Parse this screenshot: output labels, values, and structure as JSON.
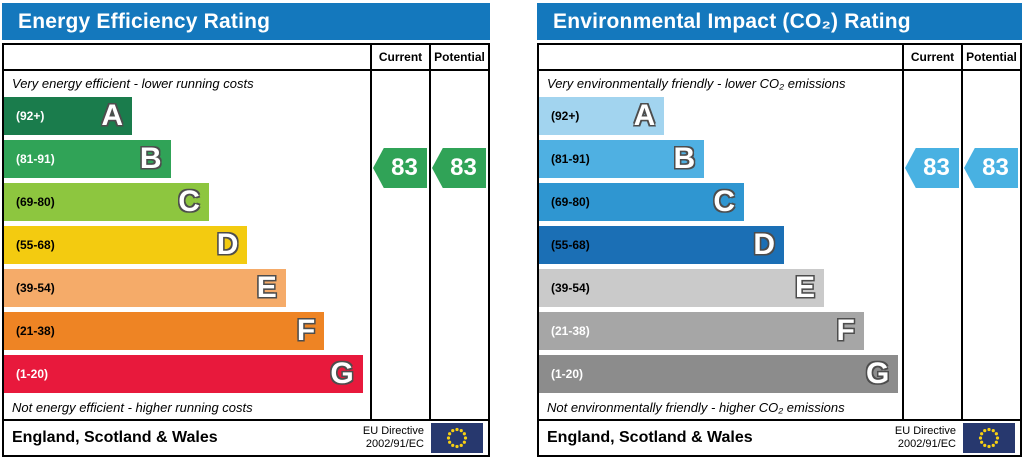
{
  "charts": [
    {
      "title": "Energy Efficiency Rating",
      "header_color": "#1478bd",
      "columns": {
        "current": "Current",
        "potential": "Potential"
      },
      "top_caption": "Very energy efficient - lower running costs",
      "bottom_caption": "Not energy efficient - higher running costs",
      "bands": [
        {
          "grade": "A",
          "range": "(92+)",
          "color": "#1a7c4c",
          "label_color": "#ffffff",
          "width_pct": 35
        },
        {
          "grade": "B",
          "range": "(81-91)",
          "color": "#30a357",
          "label_color": "#ffffff",
          "width_pct": 45.5
        },
        {
          "grade": "C",
          "range": "(69-80)",
          "color": "#8dc63f",
          "label_color": "#000000",
          "width_pct": 56
        },
        {
          "grade": "D",
          "range": "(55-68)",
          "color": "#f3cb10",
          "label_color": "#000000",
          "width_pct": 66.5
        },
        {
          "grade": "E",
          "range": "(39-54)",
          "color": "#f5ab69",
          "label_color": "#000000",
          "width_pct": 77
        },
        {
          "grade": "F",
          "range": "(21-38)",
          "color": "#ee8424",
          "label_color": "#000000",
          "width_pct": 87.5
        },
        {
          "grade": "G",
          "range": "(1-20)",
          "color": "#e8193c",
          "label_color": "#ffffff",
          "width_pct": 98
        }
      ],
      "current": {
        "value": "83",
        "color": "#30a357"
      },
      "potential": {
        "value": "83",
        "color": "#30a357"
      },
      "footer": {
        "region": "England, Scotland & Wales",
        "directive": [
          "EU Directive",
          "2002/91/EC"
        ]
      }
    },
    {
      "title": "Environmental Impact (CO₂) Rating",
      "header_color": "#1478bd",
      "columns": {
        "current": "Current",
        "potential": "Potential"
      },
      "top_caption": "Very environmentally friendly - lower CO₂ emissions",
      "bottom_caption": "Not environmentally friendly - higher CO₂ emissions",
      "bands": [
        {
          "grade": "A",
          "range": "(92+)",
          "color": "#a2d4ef",
          "label_color": "#000000",
          "width_pct": 34.5
        },
        {
          "grade": "B",
          "range": "(81-91)",
          "color": "#4fb0e2",
          "label_color": "#000000",
          "width_pct": 45.5
        },
        {
          "grade": "C",
          "range": "(69-80)",
          "color": "#2f96d1",
          "label_color": "#000000",
          "width_pct": 56.5
        },
        {
          "grade": "D",
          "range": "(55-68)",
          "color": "#1b6fb5",
          "label_color": "#000000",
          "width_pct": 67.5
        },
        {
          "grade": "E",
          "range": "(39-54)",
          "color": "#cacaca",
          "label_color": "#000000",
          "width_pct": 78.5
        },
        {
          "grade": "F",
          "range": "(21-38)",
          "color": "#a6a6a6",
          "label_color": "#ffffff",
          "width_pct": 89.5
        },
        {
          "grade": "G",
          "range": "(1-20)",
          "color": "#8c8c8c",
          "label_color": "#ffffff",
          "width_pct": 99
        }
      ],
      "current": {
        "value": "83",
        "color": "#48b1e2"
      },
      "potential": {
        "value": "83",
        "color": "#48b1e2"
      },
      "footer": {
        "region": "England, Scotland & Wales",
        "directive": [
          "EU Directive",
          "2002/91/EC"
        ]
      }
    }
  ],
  "eu_flag": {
    "field_color": "#27386e",
    "star_color": "#f8d012"
  },
  "chart_data": [
    {
      "type": "bar",
      "title": "Energy Efficiency Rating",
      "categories": [
        "A",
        "B",
        "C",
        "D",
        "E",
        "F",
        "G"
      ],
      "band_ranges": [
        "92+",
        "81-91",
        "69-80",
        "55-68",
        "39-54",
        "21-38",
        "1-20"
      ],
      "values": [
        35,
        45.5,
        56,
        66.5,
        77,
        87.5,
        98
      ],
      "values_note": "bar lengths as % of scale width",
      "current": 83,
      "potential": 83,
      "current_grade": "B",
      "potential_grade": "B",
      "legend": [
        "Current",
        "Potential"
      ],
      "annotations": [
        "Very energy efficient - lower running costs",
        "Not energy efficient - higher running costs"
      ],
      "footer": "England, Scotland & Wales — EU Directive 2002/91/EC"
    },
    {
      "type": "bar",
      "title": "Environmental Impact (CO₂) Rating",
      "categories": [
        "A",
        "B",
        "C",
        "D",
        "E",
        "F",
        "G"
      ],
      "band_ranges": [
        "92+",
        "81-91",
        "69-80",
        "55-68",
        "39-54",
        "21-38",
        "1-20"
      ],
      "values": [
        34.5,
        45.5,
        56.5,
        67.5,
        78.5,
        89.5,
        99
      ],
      "values_note": "bar lengths as % of scale width",
      "current": 83,
      "potential": 83,
      "current_grade": "B",
      "potential_grade": "B",
      "legend": [
        "Current",
        "Potential"
      ],
      "annotations": [
        "Very environmentally friendly - lower CO₂ emissions",
        "Not environmentally friendly - higher CO₂ emissions"
      ],
      "footer": "England, Scotland & Wales — EU Directive 2002/91/EC"
    }
  ]
}
